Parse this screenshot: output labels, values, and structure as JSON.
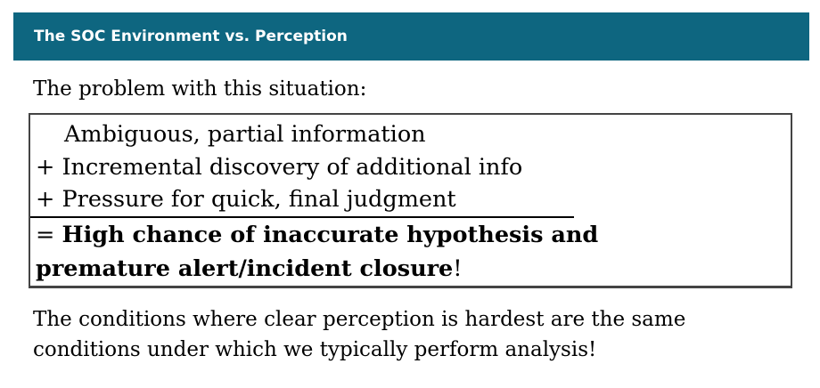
{
  "header": {
    "title": "The SOC Environment vs. Perception",
    "bar_color": "#0e6680"
  },
  "intro": "The problem with this situation:",
  "box": {
    "line1": "Ambiguous, partial information",
    "line2": "+ Incremental discovery of additional info",
    "line3": "+ Pressure for quick, final judgment",
    "result_prefix": "= ",
    "result_bold_1": "High chance of inaccurate hypothesis and",
    "result_bold_2": "premature alert/incident closure",
    "result_suffix": "!"
  },
  "conclusion": {
    "line1": "The conditions where clear perception is hardest are the same",
    "line2": "conditions under which we typically perform analysis!"
  }
}
